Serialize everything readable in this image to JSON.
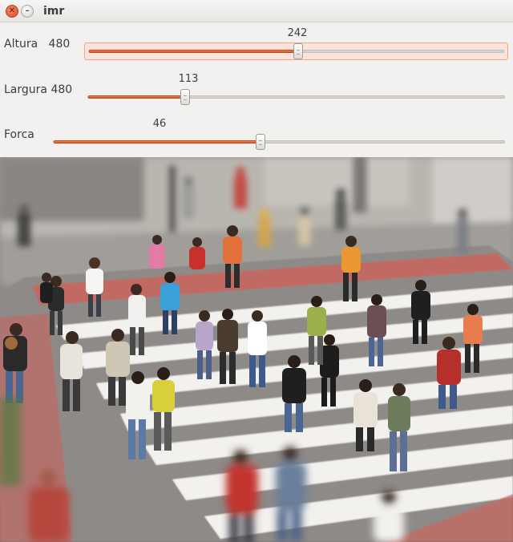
{
  "window": {
    "title": "imr"
  },
  "sliders": [
    {
      "name": "Altura",
      "max_label": "480",
      "value": "242",
      "fraction": 0.504
    },
    {
      "name": "Largura",
      "max_label": "480",
      "value": "113",
      "fraction": 0.235
    },
    {
      "name": "Forca",
      "max_label": "",
      "value": "46",
      "fraction": 0.46
    }
  ],
  "image": {
    "icon": "tilt-shift-crowd-crosswalk-photo"
  },
  "colors": {
    "accent": "#df5a25",
    "close_button": "#df4a1f",
    "stripe_red": "#c9645e"
  }
}
